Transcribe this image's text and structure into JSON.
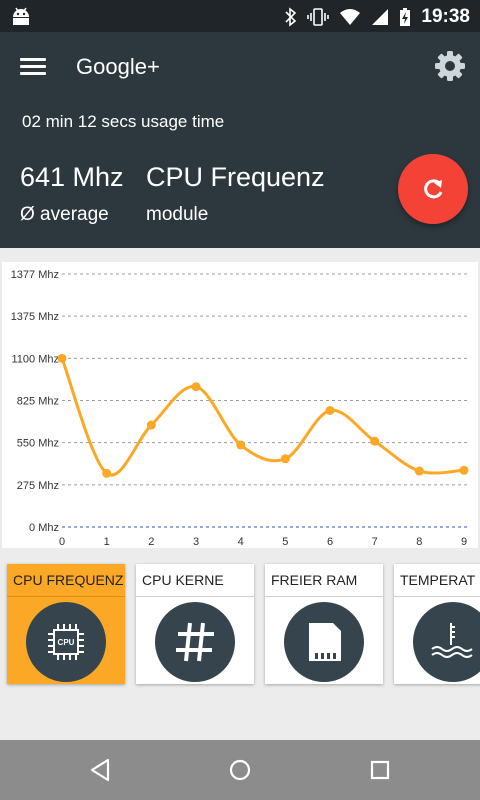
{
  "status_bar": {
    "time": "19:38"
  },
  "header": {
    "title": "Google+",
    "usage_text": "02 min 12 secs usage time",
    "value": "641 Mhz",
    "value_sub": "Ø average",
    "metric": "CPU Frequenz",
    "metric_sub": "module"
  },
  "chart_data": {
    "type": "line",
    "x": [
      0,
      1,
      2,
      3,
      4,
      5,
      6,
      7,
      8,
      9
    ],
    "series": [
      {
        "values": [
          1100,
          350,
          665,
          915,
          535,
          445,
          760,
          560,
          365,
          370
        ]
      }
    ],
    "y_ticks": [
      "1377 Mhz",
      "1375 Mhz",
      "1100 Mhz",
      "825 Mhz",
      "550 Mhz",
      "275 Mhz",
      "0 Mhz"
    ],
    "y_tick_values": [
      1377,
      1375,
      1100,
      825,
      550,
      275,
      0
    ],
    "ylim": [
      0,
      1377
    ],
    "grid": true,
    "color": "#fca827"
  },
  "tiles": [
    {
      "label": "CPU FREQUENZ",
      "icon": "cpu-icon",
      "chip_text": "CPU",
      "active": true
    },
    {
      "label": "CPU KERNE",
      "icon": "hash-icon",
      "active": false
    },
    {
      "label": "FREIER RAM",
      "icon": "sd-card-icon",
      "active": false
    },
    {
      "label": "TEMPERAT",
      "icon": "temperature-icon",
      "active": false
    }
  ],
  "colors": {
    "header": "#2d383e",
    "accent": "#fca827",
    "fab": "#f44336"
  }
}
